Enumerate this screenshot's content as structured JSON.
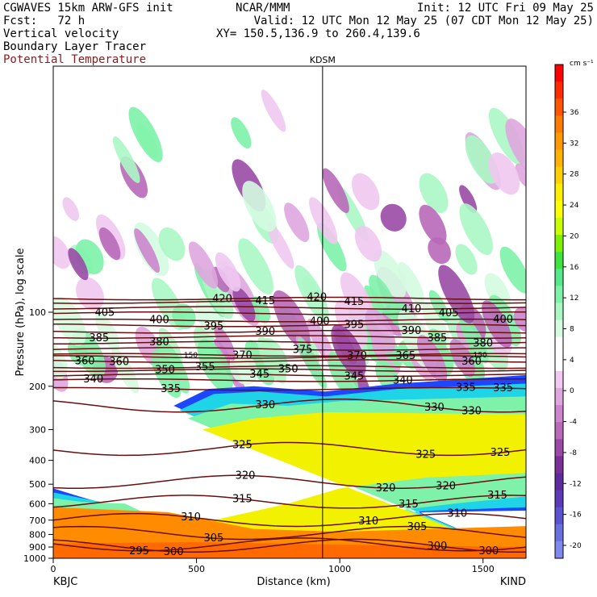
{
  "header": {
    "line1_left": "CGWAVES 15km ARW-GFS init",
    "line1_center": "NCAR/MMM",
    "line1_right": "Init: 12 UTC Fri 09 May 25",
    "line2_left": "Fcst:   72 h",
    "line2_right": "Valid: 12 UTC Mon 12 May 25 (07 CDT Mon 12 May 25)",
    "line3_left": "Vertical velocity",
    "line3_right": "XY= 150.5,136.9 to 260.4,139.6",
    "line4_left": "Boundary Layer Tracer",
    "line5_left": "Potential Temperature"
  },
  "colors": {
    "potential_temperature_label": "#8b1a1a",
    "theta_line": "#6b0d0d"
  },
  "chart_data": {
    "type": "cross-section",
    "title": "",
    "xlabel": "Distance (km)",
    "ylabel": "Pressure (hPa), log scale",
    "xlim": [
      0,
      1650
    ],
    "ylim": [
      1000,
      10
    ],
    "x_ticks": [
      0,
      500,
      1000,
      1500
    ],
    "y_ticks": [
      100,
      200,
      300,
      400,
      500,
      600,
      700,
      800,
      900,
      1000
    ],
    "x_endpoints": {
      "left": "KBJC",
      "right": "KIND"
    },
    "marker": {
      "label": "KDSM",
      "distance_km": 940
    },
    "colorbar": {
      "unit": "cm s⁻¹",
      "ticks": [
        36,
        32,
        28,
        24,
        20,
        16,
        12,
        8,
        4,
        0,
        -4,
        -8,
        -12,
        -16,
        -20
      ],
      "colors": [
        "#ff0000",
        "#ff2a00",
        "#ff5500",
        "#ff7a00",
        "#ff9900",
        "#ffb300",
        "#ffd000",
        "#ffee00",
        "#ffff00",
        "#c8ff00",
        "#7ef000",
        "#3fe23f",
        "#54e88a",
        "#7ef2a8",
        "#aaf7c4",
        "#d4fbe0",
        "#ffffff",
        "#ffffff",
        "#f0c8f0",
        "#dea6de",
        "#cc85cc",
        "#b869b8",
        "#9a4aa6",
        "#7a2e96",
        "#5f2a9c",
        "#5a3ab8",
        "#5b52cf",
        "#6a6fe0",
        "#8088ee"
      ]
    },
    "theta_levels": [
      {
        "theta": 420,
        "pressure": 88,
        "labels_km": [
          590,
          920
        ]
      },
      {
        "theta": 415,
        "pressure": 91,
        "labels_km": [
          740,
          1050
        ]
      },
      {
        "theta": 410,
        "pressure": 96,
        "labels_km": [
          1250
        ]
      },
      {
        "theta": 405,
        "pressure": 101,
        "labels_km": [
          180,
          1380
        ]
      },
      {
        "theta": 400,
        "pressure": 108,
        "labels_km": [
          370,
          930,
          1570
        ]
      },
      {
        "theta": 395,
        "pressure": 113,
        "labels_km": [
          560,
          1050
        ]
      },
      {
        "theta": 390,
        "pressure": 120,
        "labels_km": [
          740,
          1250
        ]
      },
      {
        "theta": 385,
        "pressure": 126,
        "labels_km": [
          160,
          1340
        ]
      },
      {
        "theta": 380,
        "pressure": 133,
        "labels_km": [
          370,
          1500
        ]
      },
      {
        "theta": 375,
        "pressure": 141,
        "labels_km": [
          870
        ]
      },
      {
        "theta": 370,
        "pressure": 149,
        "labels_km": [
          660,
          1060
        ]
      },
      {
        "theta": 365,
        "pressure": 152,
        "labels_km": [
          1230
        ]
      },
      {
        "theta": 360,
        "pressure": 158,
        "labels_km": [
          110,
          230,
          1460
        ]
      },
      {
        "theta": 355,
        "pressure": 167,
        "labels_km": [
          530
        ]
      },
      {
        "theta": 350,
        "pressure": 172,
        "labels_km": [
          390,
          820
        ]
      },
      {
        "theta": 345,
        "pressure": 180,
        "labels_km": [
          720,
          1050
        ]
      },
      {
        "theta": 340,
        "pressure": 189,
        "labels_km": [
          140,
          1220
        ]
      },
      {
        "theta": 335,
        "pressure": 205,
        "labels_km": [
          410,
          1440,
          1570
        ]
      },
      {
        "theta": 330,
        "pressure": 240,
        "labels_km": [
          740,
          1330,
          1460
        ]
      },
      {
        "theta": 325,
        "pressure": 360,
        "labels_km": [
          660,
          1300,
          1560
        ]
      },
      {
        "theta": 320,
        "pressure": 490,
        "labels_km": [
          670,
          1160,
          1370
        ]
      },
      {
        "theta": 315,
        "pressure": 590,
        "labels_km": [
          660,
          1240,
          1550
        ]
      },
      {
        "theta": 310,
        "pressure": 700,
        "labels_km": [
          480,
          1100,
          1410
        ]
      },
      {
        "theta": 305,
        "pressure": 790,
        "labels_km": [
          560,
          1270
        ]
      },
      {
        "theta": 300,
        "pressure": 890,
        "labels_km": [
          420,
          1340,
          1520
        ]
      },
      {
        "theta": 295,
        "pressure": 880,
        "labels_km": [
          300
        ]
      }
    ],
    "inline_labels": [
      {
        "text": "150",
        "distance_km": 480,
        "pressure": 149
      },
      {
        "text": "150",
        "distance_km": 1490,
        "pressure": 149
      }
    ]
  }
}
